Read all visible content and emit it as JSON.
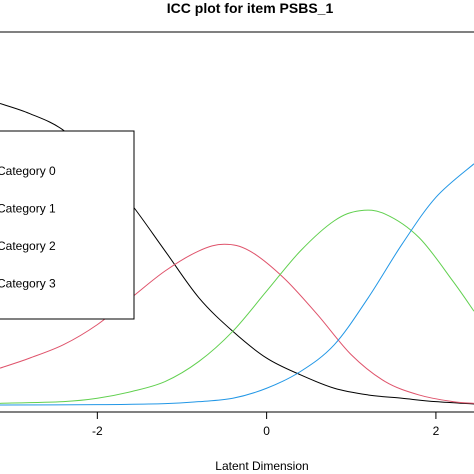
{
  "chart_data": {
    "type": "line",
    "title": "ICC plot for item PSBS_1",
    "xlabel": "Latent Dimension",
    "ylabel": "",
    "xlim": [
      -3.15,
      2.45
    ],
    "ylim": [
      0,
      1
    ],
    "x_ticks": [
      -2,
      0,
      2
    ],
    "x_tick_labels": [
      "-2",
      "0",
      "2"
    ],
    "grid": false,
    "legend_position": "top-left",
    "series": [
      {
        "name": "Category 0",
        "color": "#000000",
        "x": [
          -3.15,
          -2.8,
          -2.4,
          -2.0,
          -1.6,
          -1.2,
          -0.8,
          -0.4,
          0.0,
          0.4,
          0.8,
          1.2,
          1.6,
          2.0,
          2.45
        ],
        "y": [
          0.9,
          0.87,
          0.82,
          0.72,
          0.6,
          0.46,
          0.32,
          0.22,
          0.14,
          0.09,
          0.05,
          0.03,
          0.02,
          0.01,
          0.003
        ]
      },
      {
        "name": "Category 1",
        "color": "#DF536B",
        "x": [
          -3.15,
          -2.8,
          -2.4,
          -2.0,
          -1.6,
          -1.2,
          -0.8,
          -0.5,
          -0.2,
          0.2,
          0.6,
          1.0,
          1.4,
          1.8,
          2.2,
          2.45
        ],
        "y": [
          0.11,
          0.14,
          0.18,
          0.24,
          0.32,
          0.4,
          0.46,
          0.48,
          0.46,
          0.38,
          0.27,
          0.15,
          0.07,
          0.03,
          0.01,
          0.005
        ]
      },
      {
        "name": "Category 2",
        "color": "#61D04F",
        "x": [
          -3.15,
          -2.4,
          -2.0,
          -1.6,
          -1.2,
          -0.8,
          -0.4,
          0.0,
          0.4,
          0.8,
          1.1,
          1.4,
          1.8,
          2.2,
          2.45
        ],
        "y": [
          0.005,
          0.01,
          0.02,
          0.04,
          0.07,
          0.13,
          0.22,
          0.34,
          0.46,
          0.55,
          0.58,
          0.57,
          0.5,
          0.37,
          0.28
        ]
      },
      {
        "name": "Category 3",
        "color": "#2297E6",
        "x": [
          -3.15,
          -2.0,
          -1.2,
          -0.8,
          -0.4,
          0.0,
          0.4,
          0.8,
          1.2,
          1.6,
          2.0,
          2.45
        ],
        "y": [
          0.0,
          0.001,
          0.004,
          0.01,
          0.02,
          0.05,
          0.1,
          0.18,
          0.32,
          0.48,
          0.62,
          0.72
        ]
      }
    ]
  }
}
